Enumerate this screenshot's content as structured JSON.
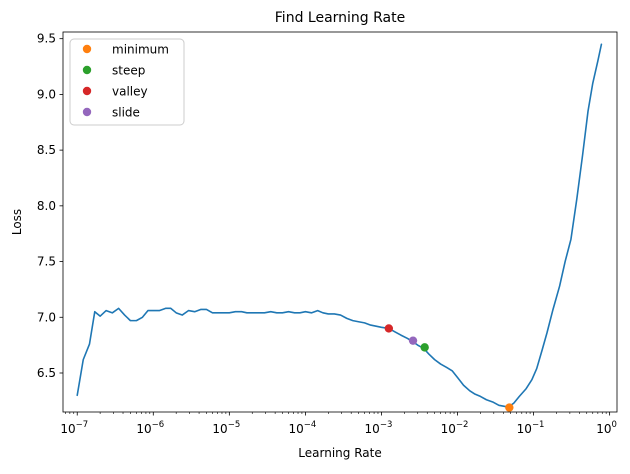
{
  "chart_data": {
    "type": "line",
    "title": "Find Learning Rate",
    "xlabel": "Learning Rate",
    "ylabel": "Loss",
    "xscale": "log",
    "xlim": [
      6.5e-08,
      1.25
    ],
    "ylim": [
      6.15,
      9.56
    ],
    "grid": false,
    "legend_position": "top-left",
    "x_ticks": [
      {
        "value": 1e-07,
        "base": "10",
        "exp": "−7"
      },
      {
        "value": 1e-06,
        "base": "10",
        "exp": "−6"
      },
      {
        "value": 1e-05,
        "base": "10",
        "exp": "−5"
      },
      {
        "value": 0.0001,
        "base": "10",
        "exp": "−4"
      },
      {
        "value": 0.001,
        "base": "10",
        "exp": "−3"
      },
      {
        "value": 0.01,
        "base": "10",
        "exp": "−2"
      },
      {
        "value": 0.1,
        "base": "10",
        "exp": "−1"
      },
      {
        "value": 1,
        "base": "10",
        "exp": "0"
      }
    ],
    "y_ticks": [
      {
        "value": 6.5,
        "label": "6.5"
      },
      {
        "value": 7.0,
        "label": "7.0"
      },
      {
        "value": 7.5,
        "label": "7.5"
      },
      {
        "value": 8.0,
        "label": "8.0"
      },
      {
        "value": 8.5,
        "label": "8.5"
      },
      {
        "value": 9.0,
        "label": "9.0"
      },
      {
        "value": 9.5,
        "label": "9.5"
      }
    ],
    "series": [
      {
        "name": "loss",
        "color": "#1f77b4",
        "x": [
          1e-07,
          1.2e-07,
          1.45e-07,
          1.7e-07,
          2e-07,
          2.4e-07,
          2.9e-07,
          3.5e-07,
          4.2e-07,
          5e-07,
          6e-07,
          7.2e-07,
          8.5e-07,
          1e-06,
          1.2e-06,
          1.45e-06,
          1.7e-06,
          2e-06,
          2.4e-06,
          2.9e-06,
          3.5e-06,
          4.2e-06,
          5e-06,
          6e-06,
          7.2e-06,
          8.5e-06,
          1e-05,
          1.2e-05,
          1.45e-05,
          1.7e-05,
          2e-05,
          2.4e-05,
          2.9e-05,
          3.5e-05,
          4.2e-05,
          5e-05,
          6e-05,
          7.2e-05,
          8.5e-05,
          0.0001,
          0.00012,
          0.000145,
          0.00017,
          0.0002,
          0.00024,
          0.00029,
          0.00035,
          0.00042,
          0.0005,
          0.0006,
          0.00072,
          0.00085,
          0.001,
          0.00125,
          0.0015,
          0.0018,
          0.0022,
          0.0026,
          0.003,
          0.0036,
          0.0042,
          0.005,
          0.006,
          0.0072,
          0.0085,
          0.01,
          0.012,
          0.0145,
          0.017,
          0.02,
          0.024,
          0.029,
          0.035,
          0.042,
          0.048,
          0.055,
          0.065,
          0.08,
          0.095,
          0.11,
          0.13,
          0.15,
          0.18,
          0.22,
          0.26,
          0.31,
          0.37,
          0.44,
          0.52,
          0.6,
          0.7,
          0.78
        ],
        "y": [
          6.3,
          6.62,
          6.76,
          7.05,
          7.01,
          7.06,
          7.04,
          7.08,
          7.02,
          6.97,
          6.97,
          7.0,
          7.06,
          7.06,
          7.06,
          7.08,
          7.08,
          7.04,
          7.02,
          7.06,
          7.05,
          7.07,
          7.07,
          7.04,
          7.04,
          7.04,
          7.04,
          7.05,
          7.05,
          7.04,
          7.04,
          7.04,
          7.04,
          7.05,
          7.04,
          7.04,
          7.05,
          7.04,
          7.04,
          7.05,
          7.04,
          7.06,
          7.04,
          7.03,
          7.03,
          7.02,
          6.99,
          6.97,
          6.96,
          6.95,
          6.93,
          6.92,
          6.91,
          6.9,
          6.87,
          6.84,
          6.81,
          6.78,
          6.75,
          6.72,
          6.67,
          6.62,
          6.58,
          6.55,
          6.52,
          6.46,
          6.39,
          6.34,
          6.31,
          6.29,
          6.26,
          6.24,
          6.21,
          6.2,
          6.2,
          6.23,
          6.29,
          6.36,
          6.44,
          6.54,
          6.71,
          6.86,
          7.07,
          7.28,
          7.5,
          7.7,
          8.06,
          8.45,
          8.85,
          9.1,
          9.3,
          9.45
        ]
      }
    ],
    "markers": [
      {
        "name": "minimum",
        "x": 0.048,
        "y": 6.19,
        "color": "#ff7f0e"
      },
      {
        "name": "steep",
        "x": 0.0037,
        "y": 6.73,
        "color": "#2ca02c"
      },
      {
        "name": "valley",
        "x": 0.00125,
        "y": 6.9,
        "color": "#d62728"
      },
      {
        "name": "slide",
        "x": 0.0026,
        "y": 6.79,
        "color": "#9467bd"
      }
    ]
  }
}
